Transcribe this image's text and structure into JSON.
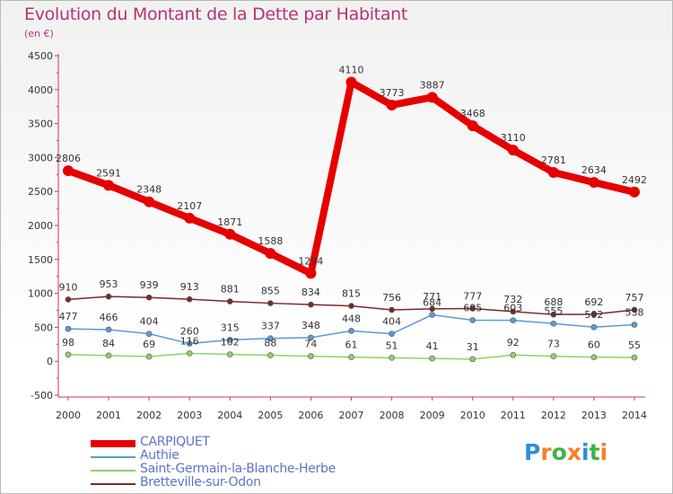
{
  "header": {
    "title": "Evolution du Montant de la Dette par Habitant",
    "subtitle": "(en €)"
  },
  "logo": {
    "text": "Proxiti",
    "letter_colors": [
      "#2e8fd6",
      "#f58220",
      "#3cb44b",
      "#f58220",
      "#2e8fd6",
      "#3cb44b",
      "#f58220"
    ]
  },
  "chart_data": {
    "type": "line",
    "title": "Evolution du Montant de la Dette par Habitant",
    "subtitle": "(en €)",
    "xlabel": "",
    "ylabel": "",
    "x": [
      "2000",
      "2001",
      "2002",
      "2003",
      "2004",
      "2005",
      "2006",
      "2007",
      "2008",
      "2009",
      "2010",
      "2011",
      "2012",
      "2013",
      "2014"
    ],
    "ylim": [
      -500,
      4500
    ],
    "yticks": [
      "-500",
      "0",
      "500",
      "1000",
      "1500",
      "2000",
      "2500",
      "3000",
      "3500",
      "4000",
      "4500"
    ],
    "grid": false,
    "legend_placement": "bottom-left",
    "series": [
      {
        "name": "CARPIQUET",
        "color": "#e60000",
        "values": [
          2806,
          2591,
          2348,
          2107,
          1871,
          1588,
          1294,
          4110,
          3773,
          3887,
          3468,
          3110,
          2781,
          2634,
          2492
        ],
        "labels": [
          "2806",
          "2591",
          "2348",
          "2107",
          "1871",
          "1588",
          "1294",
          "4110",
          "3773",
          "3887",
          "3468",
          "3110",
          "2781",
          "2634",
          "2492"
        ]
      },
      {
        "name": "Authie",
        "color": "#5b9bd5",
        "values": [
          477,
          466,
          404,
          260,
          315,
          337,
          348,
          448,
          404,
          684,
          605,
          603,
          555,
          502,
          538
        ],
        "labels": [
          "477",
          "466",
          "404",
          "260",
          "315",
          "337",
          "348",
          "448",
          "404",
          "684",
          "605",
          "603",
          "555",
          "502",
          "538"
        ]
      },
      {
        "name": "Saint-Germain-la-Blanche-Herbe",
        "color": "#8fd16a",
        "values": [
          98,
          84,
          69,
          116,
          102,
          88,
          74,
          61,
          51,
          41,
          31,
          92,
          73,
          60,
          55
        ],
        "labels": [
          "98",
          "84",
          "69",
          "116",
          "102",
          "88",
          "74",
          "61",
          "51",
          "41",
          "31",
          "92",
          "73",
          "60",
          "55"
        ]
      },
      {
        "name": "Bretteville-sur-Odon",
        "color": "#7a2a2a",
        "values": [
          910,
          953,
          939,
          913,
          881,
          855,
          834,
          815,
          756,
          771,
          777,
          732,
          688,
          692,
          757
        ],
        "labels": [
          "910",
          "953",
          "939",
          "913",
          "881",
          "855",
          "834",
          "815",
          "756",
          "771",
          "777",
          "732",
          "688",
          "692",
          "757"
        ]
      }
    ]
  }
}
